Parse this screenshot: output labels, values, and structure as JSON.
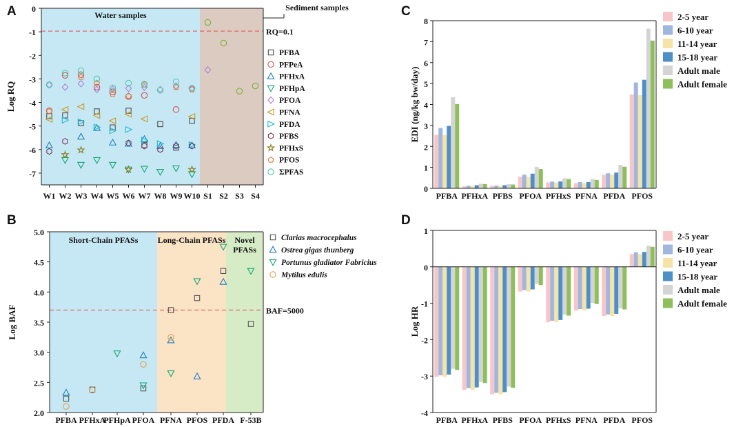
{
  "colors": {
    "water_bg": "#c6e8f4",
    "sediment_bg": "#dccbc0",
    "short_bg": "#c6e8f4",
    "long_bg": "#fbe3c6",
    "novel_bg": "#d6ecc6",
    "threshold": "#e06666",
    "axis": "#222222",
    "bar_outline": "none"
  },
  "chart_data": [
    {
      "panel": "A",
      "type": "scatter",
      "ylabel": "Log RQ",
      "ylim": [
        -7.5,
        0
      ],
      "yticks": [
        -7,
        -6,
        -5,
        -4,
        -3,
        -2,
        -1,
        0
      ],
      "categories": [
        "W1",
        "W2",
        "W3",
        "W4",
        "W5",
        "W6",
        "W7",
        "W8",
        "W9",
        "W10",
        "S1",
        "S2",
        "S3",
        "S4"
      ],
      "regions": [
        {
          "label": "Water samples",
          "from": 0,
          "to": 9,
          "color_key": "water_bg"
        },
        {
          "label": "Sediment samples",
          "from": 10,
          "to": 13,
          "color_key": "sediment_bg"
        }
      ],
      "threshold": {
        "value": -0.97,
        "label": "RQ=0.1"
      },
      "series": [
        {
          "name": "PFBA",
          "marker": "square",
          "color": "#4d4d4d",
          "values": [
            -4.58,
            -4.55,
            -4.88,
            -4.38,
            -5.06,
            -4.35,
            -5.81,
            -4.92,
            -5.92,
            -4.78,
            null,
            null,
            null,
            null
          ]
        },
        {
          "name": "PFPeA",
          "marker": "circle",
          "color": "#d9534f",
          "values": [
            -4.35,
            -2.85,
            -2.82,
            -3.35,
            -3.55,
            -3.75,
            -3.7,
            null,
            -4.3,
            -3.4,
            null,
            null,
            null,
            null
          ]
        },
        {
          "name": "PFHxA",
          "marker": "tri-up",
          "color": "#1f7fbf",
          "values": [
            -5.82,
            null,
            -5.45,
            -5.08,
            -5.7,
            -5.75,
            -5.55,
            -5.85,
            -5.8,
            -5.82,
            null,
            null,
            null,
            null
          ]
        },
        {
          "name": "PFHpA",
          "marker": "tri-down",
          "color": "#17a673",
          "values": [
            null,
            -6.45,
            -6.65,
            -6.45,
            -6.65,
            -6.85,
            -6.82,
            -6.95,
            -6.8,
            -7.05,
            null,
            null,
            null,
            null
          ]
        },
        {
          "name": "PFOA",
          "marker": "diamond",
          "color": "#b07fd6",
          "values": [
            -3.25,
            -3.35,
            -3.2,
            -3.45,
            -3.45,
            -3.4,
            -3.35,
            -3.45,
            -3.3,
            -3.4,
            -2.62,
            null,
            null,
            null
          ]
        },
        {
          "name": "PFNA",
          "marker": "tri-left",
          "color": "#c79a2a",
          "values": [
            -4.72,
            -4.3,
            -4.18,
            -4.55,
            -4.78,
            -4.5,
            -4.7,
            null,
            null,
            -4.6,
            null,
            null,
            null,
            null
          ]
        },
        {
          "name": "PFDA",
          "marker": "tri-right",
          "color": "#20b8d0",
          "values": [
            null,
            -4.75,
            -4.82,
            -5.05,
            -5.2,
            -5.15,
            -5.6,
            -5.75,
            null,
            -5.8,
            null,
            null,
            null,
            null
          ]
        },
        {
          "name": "PFBS",
          "marker": "hexagon",
          "color": "#7a3a5a",
          "values": [
            -6.08,
            -5.65,
            null,
            null,
            null,
            -5.72,
            -5.85,
            -6.0,
            -5.85,
            -5.85,
            null,
            null,
            null,
            null
          ]
        },
        {
          "name": "PFHxS",
          "marker": "star",
          "color": "#8a7a1a",
          "values": [
            null,
            -6.22,
            -6.02,
            null,
            null,
            -6.85,
            null,
            null,
            null,
            -6.85,
            null,
            null,
            null,
            null
          ]
        },
        {
          "name": "PFOS",
          "marker": "pentagon",
          "color": "#e07b39",
          "values": [
            -4.38,
            null,
            -2.92,
            -3.18,
            -3.65,
            -3.72,
            -3.25,
            null,
            -3.35,
            -3.45,
            null,
            null,
            null,
            null
          ]
        },
        {
          "name": "ΣPFAS",
          "marker": "circle",
          "color": "#4cc9a8",
          "values": [
            -3.25,
            -2.75,
            -2.65,
            -3.0,
            -3.38,
            -3.18,
            -3.22,
            -3.48,
            -3.12,
            -3.4,
            -0.6,
            -1.48,
            -3.52,
            -3.3
          ]
        }
      ],
      "sediment_circle_color": "#7cae3c"
    },
    {
      "panel": "B",
      "type": "scatter",
      "ylabel": "Log BAF",
      "ylim": [
        2.0,
        5.0
      ],
      "yticks": [
        2.0,
        2.5,
        3.0,
        3.5,
        4.0,
        4.5,
        5.0
      ],
      "categories": [
        "PFBA",
        "PFHxA",
        "PFHpA",
        "PFOA",
        "PFNA",
        "PFOS",
        "PFDA",
        "F-53B"
      ],
      "regions": [
        {
          "label": "Short-Chain PFASs",
          "from": 0,
          "to": 3,
          "color_key": "short_bg"
        },
        {
          "label": "Long-Chain PFASs",
          "from": 4,
          "to": 6,
          "color_key": "long_bg"
        },
        {
          "label": "Novel",
          "label2": "PFASs",
          "from": 7,
          "to": 7,
          "color_key": "novel_bg"
        }
      ],
      "threshold": {
        "value": 3.7,
        "label": "BAF=5000"
      },
      "series": [
        {
          "name": "Clarias macrocephalus",
          "marker": "square",
          "color": "#555555",
          "values": [
            2.23,
            2.38,
            null,
            2.4,
            3.7,
            3.9,
            4.35,
            3.47
          ]
        },
        {
          "name": "Ostrea gigas thunberg",
          "marker": "tri-up",
          "color": "#1f7fbf",
          "values": [
            2.33,
            null,
            null,
            2.95,
            3.2,
            2.6,
            4.17,
            null
          ]
        },
        {
          "name": "Portunus gladiator Fabricius",
          "marker": "tri-down",
          "color": "#17a673",
          "values": [
            null,
            null,
            2.98,
            2.45,
            2.65,
            4.18,
            4.75,
            4.35
          ]
        },
        {
          "name": "Mytilus edulis",
          "marker": "circle",
          "color": "#e0a050",
          "values": [
            2.1,
            2.37,
            null,
            2.8,
            3.25,
            null,
            null,
            null
          ]
        }
      ]
    },
    {
      "panel": "C",
      "type": "bar",
      "ylabel": "EDI (ng/kg bw/day)",
      "ylim": [
        0,
        8
      ],
      "yticks": [
        0,
        1,
        2,
        3,
        4,
        5,
        6,
        7,
        8
      ],
      "categories": [
        "PFBA",
        "PFHxA",
        "PFBS",
        "PFOA",
        "PFHxS",
        "PFNA",
        "PFDA",
        "PFOS"
      ],
      "series": [
        {
          "name": "2-5 year",
          "color": "#f7c6c8",
          "values": [
            2.55,
            0.1,
            0.12,
            0.55,
            0.28,
            0.25,
            0.65,
            4.48
          ]
        },
        {
          "name": "6-10 year",
          "color": "#9fb7de",
          "values": [
            2.88,
            0.12,
            0.13,
            0.65,
            0.32,
            0.3,
            0.72,
            5.05
          ]
        },
        {
          "name": "11-14 year",
          "color": "#f6e3a8",
          "values": [
            2.55,
            0.1,
            0.12,
            0.55,
            0.28,
            0.25,
            0.65,
            4.45
          ]
        },
        {
          "name": "15-18 year",
          "color": "#4f8fc7",
          "values": [
            2.98,
            0.15,
            0.15,
            0.7,
            0.33,
            0.3,
            0.75,
            5.18
          ]
        },
        {
          "name": "Adult male",
          "color": "#d4d4d4",
          "values": [
            4.35,
            0.22,
            0.2,
            1.02,
            0.48,
            0.45,
            1.12,
            7.62
          ]
        },
        {
          "name": "Adult female",
          "color": "#8fbf5a",
          "values": [
            4.02,
            0.2,
            0.18,
            0.92,
            0.44,
            0.4,
            1.03,
            7.05
          ]
        }
      ]
    },
    {
      "panel": "D",
      "type": "bar",
      "ylabel": "Log HR",
      "ylim": [
        -4,
        1
      ],
      "yticks": [
        -4,
        -3,
        -2,
        -1,
        0,
        1
      ],
      "categories": [
        "PFBA",
        "PFHxA",
        "PFBS",
        "PFOA",
        "PFHxS",
        "PFNA",
        "PFDA",
        "PFOS"
      ],
      "series": [
        {
          "name": "2-5 year",
          "color": "#f7c6c8",
          "values": [
            -3.02,
            -3.38,
            -3.5,
            -0.68,
            -1.52,
            -1.2,
            -1.35,
            0.35
          ]
        },
        {
          "name": "6-10 year",
          "color": "#9fb7de",
          "values": [
            -2.98,
            -3.33,
            -3.46,
            -0.64,
            -1.48,
            -1.16,
            -1.31,
            0.4
          ]
        },
        {
          "name": "11-14 year",
          "color": "#f6e3a8",
          "values": [
            -3.02,
            -3.38,
            -3.5,
            -0.68,
            -1.52,
            -1.2,
            -1.35,
            0.35
          ]
        },
        {
          "name": "15-18 year",
          "color": "#4f8fc7",
          "values": [
            -2.96,
            -3.31,
            -3.44,
            -0.62,
            -1.46,
            -1.15,
            -1.29,
            0.41
          ]
        },
        {
          "name": "Adult male",
          "color": "#d4d4d4",
          "values": [
            -2.8,
            -3.16,
            -3.29,
            -0.47,
            -1.31,
            -0.99,
            -1.14,
            0.58
          ]
        },
        {
          "name": "Adult female",
          "color": "#8fbf5a",
          "values": [
            -2.83,
            -3.19,
            -3.32,
            -0.5,
            -1.34,
            -1.02,
            -1.17,
            0.55
          ]
        }
      ]
    }
  ]
}
